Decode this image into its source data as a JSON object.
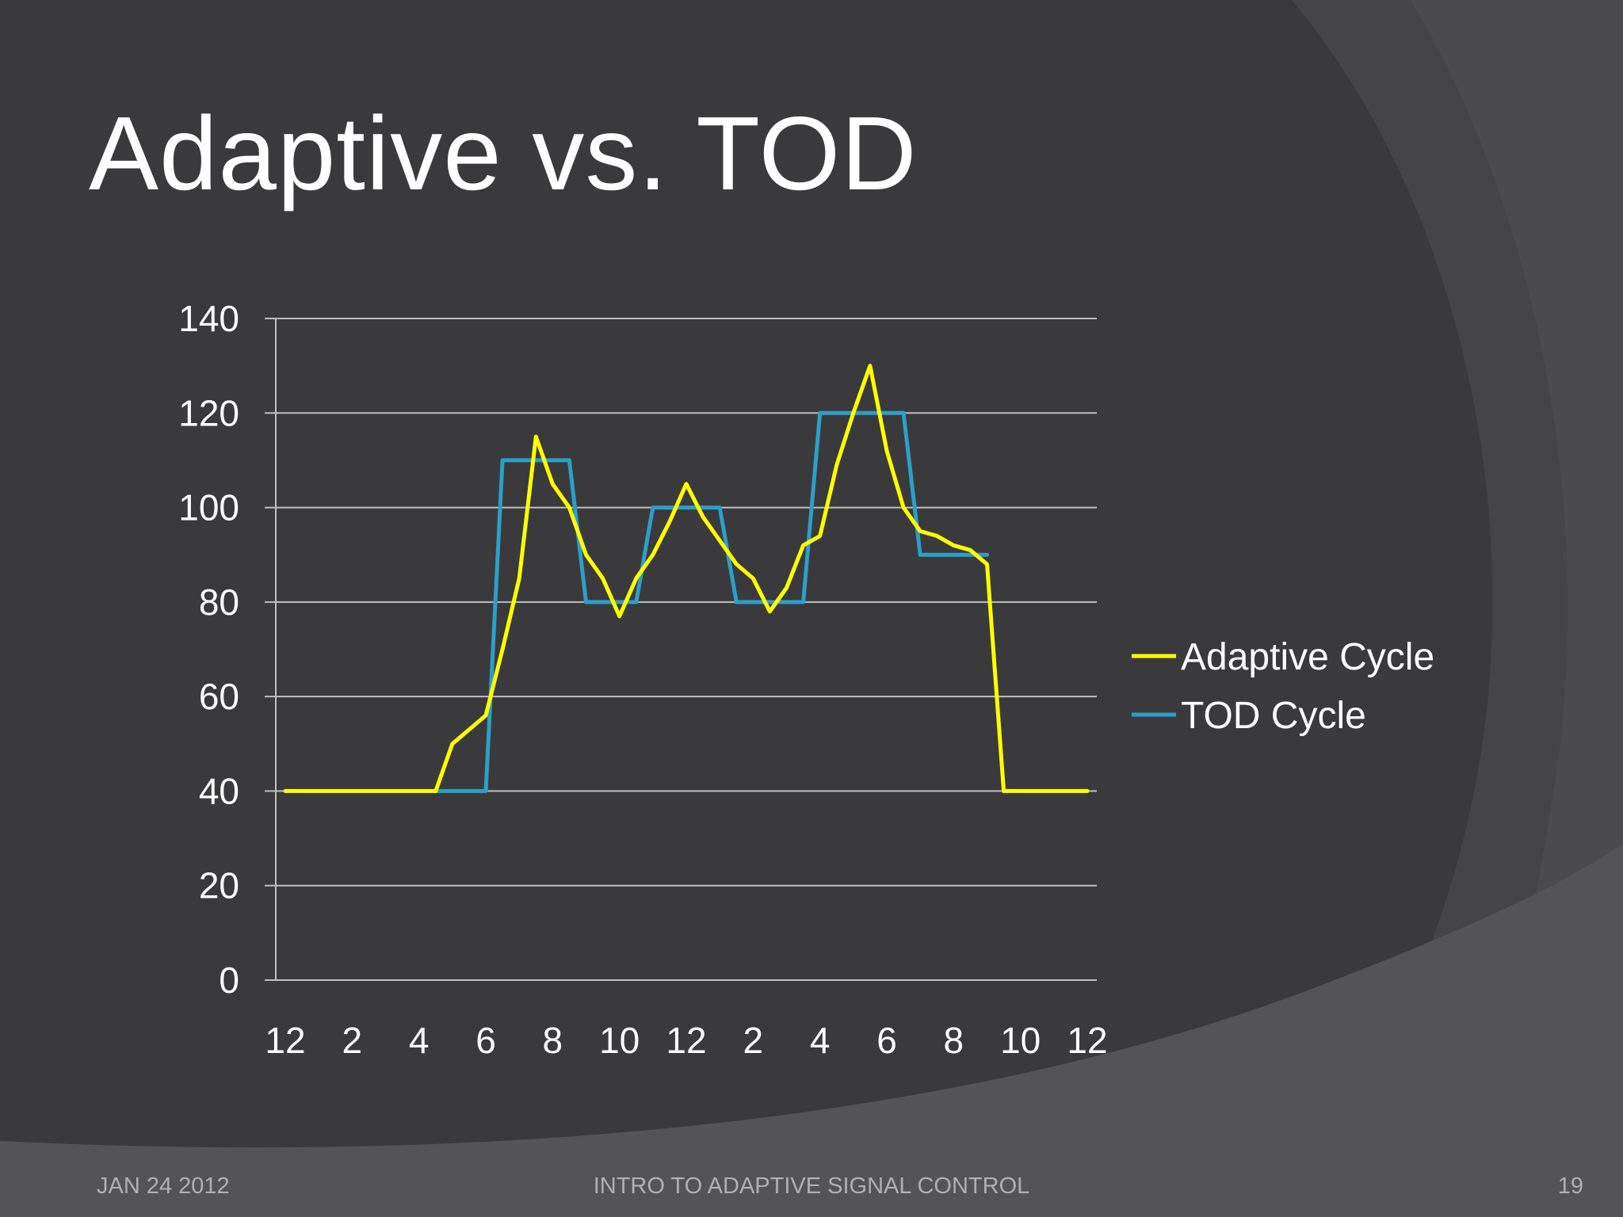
{
  "slide": {
    "title": "Adaptive vs. TOD",
    "footer_date": "JAN 24 2012",
    "footer_title": "INTRO TO ADAPTIVE SIGNAL CONTROL",
    "page_number": "19"
  },
  "colors": {
    "background": "#3a3a3c",
    "adaptive": "#ffff00",
    "tod": "#2b9fc8",
    "grid": "#bfbfbf"
  },
  "chart_data": {
    "type": "line",
    "title": "",
    "xlabel": "",
    "ylabel": "",
    "ylim": [
      0,
      140
    ],
    "yticks": [
      0,
      20,
      40,
      60,
      80,
      100,
      120,
      140
    ],
    "xlim": [
      0,
      24
    ],
    "xticks": [
      0,
      2,
      4,
      6,
      8,
      10,
      12,
      14,
      16,
      18,
      20,
      22,
      24
    ],
    "xtick_labels": [
      "12",
      "2",
      "4",
      "6",
      "8",
      "10",
      "12",
      "2",
      "4",
      "6",
      "8",
      "10",
      "12"
    ],
    "grid": true,
    "legend": "right",
    "series": [
      {
        "name": "Adaptive Cycle",
        "color": "#ffff00",
        "points": [
          [
            0,
            40
          ],
          [
            1,
            40
          ],
          [
            2,
            40
          ],
          [
            3,
            40
          ],
          [
            4,
            40
          ],
          [
            4.5,
            40
          ],
          [
            5,
            50
          ],
          [
            5.5,
            53
          ],
          [
            6,
            56
          ],
          [
            6.5,
            70
          ],
          [
            7,
            85
          ],
          [
            7.5,
            115
          ],
          [
            8,
            105
          ],
          [
            8.5,
            100
          ],
          [
            9,
            90
          ],
          [
            9.5,
            85
          ],
          [
            10,
            77
          ],
          [
            10.5,
            85
          ],
          [
            11,
            90
          ],
          [
            11.5,
            97
          ],
          [
            12,
            105
          ],
          [
            12.5,
            98
          ],
          [
            13,
            93
          ],
          [
            13.5,
            88
          ],
          [
            14,
            85
          ],
          [
            14.5,
            78
          ],
          [
            15,
            83
          ],
          [
            15.5,
            92
          ],
          [
            16,
            94
          ],
          [
            16.5,
            109
          ],
          [
            17,
            120
          ],
          [
            17.5,
            130
          ],
          [
            18,
            112
          ],
          [
            18.5,
            100
          ],
          [
            19,
            95
          ],
          [
            19.5,
            94
          ],
          [
            20,
            92
          ],
          [
            20.5,
            91
          ],
          [
            21,
            88
          ],
          [
            21.5,
            40
          ],
          [
            22,
            40
          ],
          [
            23,
            40
          ],
          [
            24,
            40
          ]
        ]
      },
      {
        "name": "TOD Cycle",
        "color": "#2b9fc8",
        "points": [
          [
            4.5,
            40
          ],
          [
            6,
            40
          ],
          [
            6.5,
            110
          ],
          [
            8.5,
            110
          ],
          [
            9,
            80
          ],
          [
            10.5,
            80
          ],
          [
            11,
            100
          ],
          [
            13,
            100
          ],
          [
            13.5,
            80
          ],
          [
            15.5,
            80
          ],
          [
            16,
            120
          ],
          [
            18.5,
            120
          ],
          [
            19,
            90
          ],
          [
            21,
            90
          ]
        ]
      }
    ]
  }
}
